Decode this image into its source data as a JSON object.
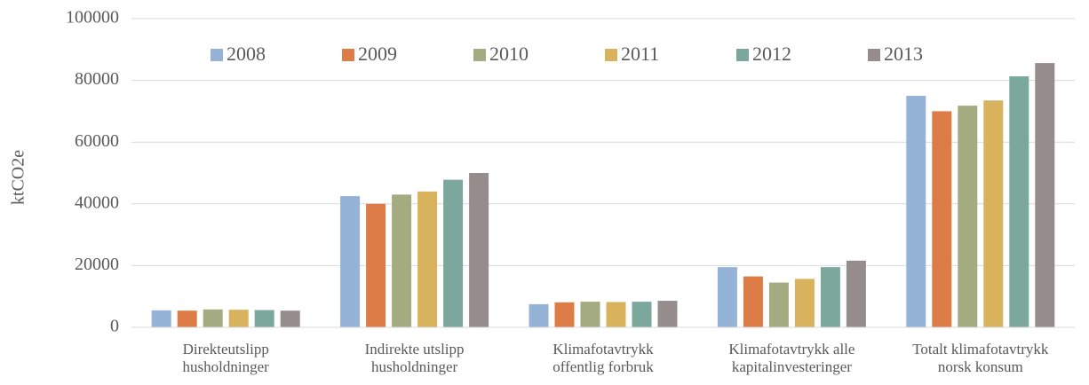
{
  "chart_data": {
    "type": "bar",
    "y_label": "ktCO2e",
    "categories": [
      [
        "Direkteutslipp",
        "husholdninger"
      ],
      [
        "Indirekte utslipp",
        "husholdninger"
      ],
      [
        "Klimafotavtrykk",
        "offentlig forbruk"
      ],
      [
        "Klimafotavtrykk alle",
        "kapitalinvesteringer"
      ],
      [
        "Totalt klimafotavtrykk",
        "norsk konsum"
      ]
    ],
    "series": [
      {
        "name": "2008",
        "color": "#95b3d7",
        "values": [
          5500,
          42500,
          7500,
          19500,
          75000
        ]
      },
      {
        "name": "2009",
        "color": "#dd7c47",
        "values": [
          5400,
          40000,
          8100,
          16500,
          70000
        ]
      },
      {
        "name": "2010",
        "color": "#a5ab81",
        "values": [
          5800,
          43000,
          8300,
          14500,
          71800
        ]
      },
      {
        "name": "2011",
        "color": "#d8b25c",
        "values": [
          5700,
          44000,
          8200,
          15700,
          73500
        ]
      },
      {
        "name": "2012",
        "color": "#7ba79d",
        "values": [
          5600,
          47800,
          8300,
          19500,
          81300
        ]
      },
      {
        "name": "2013",
        "color": "#968c8c",
        "values": [
          5400,
          50000,
          8600,
          21600,
          85600
        ]
      }
    ],
    "ylim": [
      0,
      100000
    ],
    "yticks": [
      0,
      20000,
      40000,
      60000,
      80000,
      100000
    ],
    "grid": true,
    "legend": "top"
  }
}
